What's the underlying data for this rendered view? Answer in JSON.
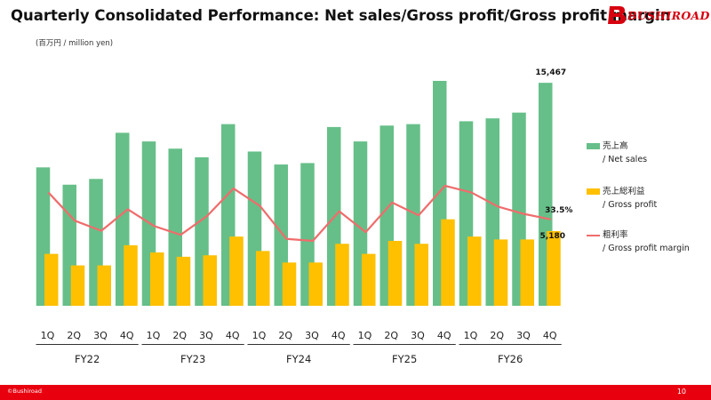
{
  "header": {
    "title": "Quarterly Consolidated Performance: Net sales/Gross profit/Gross profit margin"
  },
  "logo": {
    "text": "BUSHIROAD",
    "color": "#d7000f"
  },
  "unit_label": "(百万円 / million yen)",
  "legend": [
    {
      "line1": "売上高",
      "line2": "/ Net sales",
      "color": "#66bf88",
      "icon": "bar-swatch"
    },
    {
      "line1": "売上総利益",
      "line2": "/ Gross profit",
      "color": "#ffc000",
      "icon": "bar-swatch"
    },
    {
      "line1": "粗利率",
      "line2": "/ Gross profit margin",
      "color": "#f06c6c",
      "icon": "line-swatch"
    }
  ],
  "footer": {
    "copyright": "©Bushiroad",
    "page_number": "10",
    "color": "#e8000f"
  },
  "chart_data": {
    "type": "bar",
    "categories": [
      "1Q",
      "2Q",
      "3Q",
      "4Q",
      "1Q",
      "2Q",
      "3Q",
      "4Q",
      "1Q",
      "2Q",
      "3Q",
      "4Q",
      "1Q",
      "2Q",
      "3Q",
      "4Q",
      "1Q",
      "2Q",
      "3Q",
      "4Q"
    ],
    "groups": [
      {
        "label": "FY22",
        "start": 0,
        "end": 3
      },
      {
        "label": "FY23",
        "start": 4,
        "end": 7
      },
      {
        "label": "FY24",
        "start": 8,
        "end": 11
      },
      {
        "label": "FY25",
        "start": 12,
        "end": 15
      },
      {
        "label": "FY26",
        "start": 16,
        "end": 19
      }
    ],
    "series": [
      {
        "name": "売上高 / Net sales",
        "kind": "bar",
        "color": "#66bf88",
        "values": [
          9600,
          8400,
          8800,
          12000,
          11400,
          10900,
          10300,
          12600,
          10700,
          9800,
          9900,
          12400,
          11400,
          12500,
          12600,
          15600,
          12800,
          13000,
          13400,
          15467
        ]
      },
      {
        "name": "売上総利益 / Gross profit",
        "kind": "bar",
        "color": "#ffc000",
        "values": [
          3600,
          2800,
          2800,
          4200,
          3700,
          3400,
          3500,
          4800,
          3800,
          3000,
          3000,
          4300,
          3600,
          4500,
          4300,
          6000,
          4800,
          4600,
          4600,
          5180
        ]
      },
      {
        "name": "粗利率 / Gross profit margin",
        "kind": "line",
        "color": "#f06c6c",
        "values": [
          37.5,
          33.3,
          31.8,
          35.0,
          32.5,
          31.2,
          34.0,
          38.1,
          35.5,
          30.6,
          30.3,
          34.7,
          31.6,
          36.0,
          34.1,
          38.5,
          37.5,
          35.4,
          34.3,
          33.5
        ]
      }
    ],
    "annotations": [
      {
        "series": 0,
        "index": 19,
        "text": "15,467"
      },
      {
        "series": 1,
        "index": 19,
        "text": "5,180"
      },
      {
        "series": 2,
        "index": 19,
        "text": "33.5%"
      }
    ],
    "ylim": [
      0,
      15600
    ],
    "margin_ylim": [
      20,
      50
    ],
    "grid": false,
    "legend_position": "right"
  }
}
